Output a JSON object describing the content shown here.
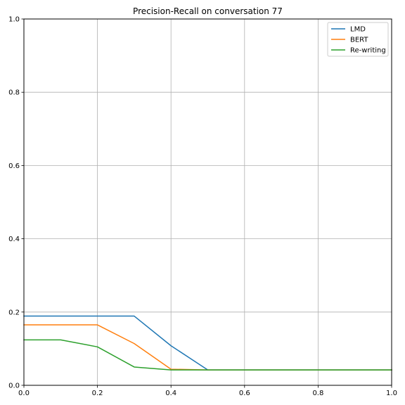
{
  "chart_data": {
    "type": "line",
    "title": "Precision-Recall on conversation 77",
    "xlabel": "",
    "ylabel": "",
    "xlim": [
      0,
      1
    ],
    "ylim": [
      0,
      1
    ],
    "xticks": [
      0.0,
      0.2,
      0.4,
      0.6,
      0.8,
      1.0
    ],
    "yticks": [
      0.0,
      0.2,
      0.4,
      0.6,
      0.8,
      1.0
    ],
    "xtick_labels": [
      "0.0",
      "0.2",
      "0.4",
      "0.6",
      "0.8",
      "1.0"
    ],
    "ytick_labels": [
      "0.0",
      "0.2",
      "0.4",
      "0.6",
      "0.8",
      "1.0"
    ],
    "grid": true,
    "legend_position": "top-right",
    "x": [
      0.0,
      0.1,
      0.2,
      0.3,
      0.4,
      0.5,
      0.6,
      0.7,
      0.8,
      0.9,
      1.0
    ],
    "series": [
      {
        "name": "LMD",
        "color": "#1f77b4",
        "values": [
          0.189,
          0.189,
          0.189,
          0.189,
          0.108,
          0.042,
          0.042,
          0.042,
          0.042,
          0.042,
          0.042
        ]
      },
      {
        "name": "BERT",
        "color": "#ff7f0e",
        "values": [
          0.165,
          0.165,
          0.165,
          0.114,
          0.044,
          0.042,
          0.042,
          0.042,
          0.042,
          0.042,
          0.042
        ]
      },
      {
        "name": "Re-writing",
        "color": "#2ca02c",
        "values": [
          0.124,
          0.124,
          0.105,
          0.05,
          0.042,
          0.042,
          0.042,
          0.042,
          0.042,
          0.042,
          0.042
        ]
      }
    ]
  }
}
